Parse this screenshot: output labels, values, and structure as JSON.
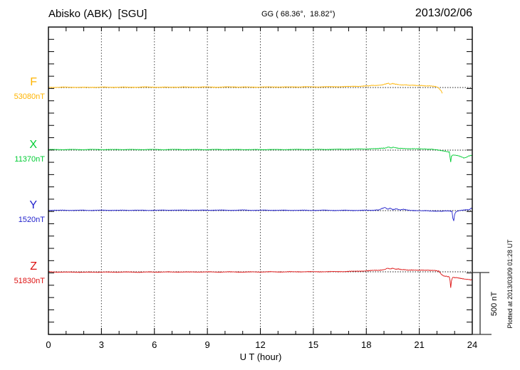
{
  "header": {
    "title": "Abisko (ABK)  [SGU]",
    "coords": "GG ( 68.36°,  18.82°)",
    "date": "2013/02/06"
  },
  "chart_data": {
    "type": "line",
    "title": "Abisko (ABK)  [SGU]",
    "coordinates_label": "GG ( 68.36°,  18.82°)",
    "date": "2013/02/06",
    "xlabel": "U T (hour)",
    "x_range": [
      0,
      24
    ],
    "x_ticks": [
      0,
      3,
      6,
      9,
      12,
      15,
      18,
      21,
      24
    ],
    "x_minor_step": 1,
    "y_minor_tick_nT": 100,
    "grid": "dotted vertical at 3h intervals, dotted horizontal baselines",
    "legend_position": "left margin, one label per trace",
    "scale_bar": {
      "label": "500 nT",
      "nT": 500
    },
    "plotted_at": "Plotted at 2013/03/09 01:28 UT",
    "series": [
      {
        "name": "F",
        "baseline_label": "53080nT",
        "baseline_nT": 53080,
        "color": "#FFB400",
        "points": [
          [
            0,
            2
          ],
          [
            0.5,
            1
          ],
          [
            1,
            3
          ],
          [
            1.5,
            2
          ],
          [
            2,
            1
          ],
          [
            2.5,
            2
          ],
          [
            3,
            3
          ],
          [
            3.5,
            2
          ],
          [
            4,
            3
          ],
          [
            4.5,
            2
          ],
          [
            5,
            3
          ],
          [
            5.5,
            4
          ],
          [
            6,
            3
          ],
          [
            6.5,
            2
          ],
          [
            7,
            3
          ],
          [
            7.5,
            4
          ],
          [
            8,
            3
          ],
          [
            8.5,
            4
          ],
          [
            9,
            4
          ],
          [
            9.5,
            3
          ],
          [
            10,
            4
          ],
          [
            10.5,
            5
          ],
          [
            11,
            4
          ],
          [
            11.5,
            3
          ],
          [
            12,
            4
          ],
          [
            12.5,
            4
          ],
          [
            13,
            5
          ],
          [
            13.5,
            4
          ],
          [
            14,
            5
          ],
          [
            14.5,
            6
          ],
          [
            15,
            5
          ],
          [
            15.5,
            6
          ],
          [
            16,
            6
          ],
          [
            16.5,
            7
          ],
          [
            17,
            8
          ],
          [
            17.5,
            10
          ],
          [
            18,
            13
          ],
          [
            18.3,
            16
          ],
          [
            18.6,
            18
          ],
          [
            18.9,
            22
          ],
          [
            19.1,
            28
          ],
          [
            19.25,
            34
          ],
          [
            19.35,
            26
          ],
          [
            19.5,
            31
          ],
          [
            19.65,
            27
          ],
          [
            19.8,
            25
          ],
          [
            20,
            22
          ],
          [
            20.3,
            20
          ],
          [
            20.6,
            18
          ],
          [
            21,
            16
          ],
          [
            21.3,
            14
          ],
          [
            21.6,
            12
          ],
          [
            21.9,
            8
          ],
          [
            22.05,
            2
          ],
          [
            22.15,
            -12
          ],
          [
            22.25,
            -30
          ],
          [
            22.3,
            -44
          ]
        ]
      },
      {
        "name": "X",
        "baseline_label": "11370nT",
        "baseline_nT": 11370,
        "color": "#00CC33",
        "points": [
          [
            0,
            4
          ],
          [
            0.5,
            5
          ],
          [
            1,
            4
          ],
          [
            1.5,
            5
          ],
          [
            2,
            4
          ],
          [
            2.5,
            5
          ],
          [
            3,
            5
          ],
          [
            3.5,
            4
          ],
          [
            4,
            5
          ],
          [
            4.5,
            5
          ],
          [
            5,
            4
          ],
          [
            5.5,
            5
          ],
          [
            6,
            5
          ],
          [
            6.5,
            4
          ],
          [
            7,
            5
          ],
          [
            7.5,
            5
          ],
          [
            8,
            4
          ],
          [
            8.5,
            5
          ],
          [
            9,
            4
          ],
          [
            9.5,
            5
          ],
          [
            10,
            5
          ],
          [
            10.5,
            4
          ],
          [
            11,
            5
          ],
          [
            11.5,
            4
          ],
          [
            12,
            4
          ],
          [
            12.5,
            5
          ],
          [
            13,
            4
          ],
          [
            13.5,
            5
          ],
          [
            14,
            5
          ],
          [
            14.5,
            6
          ],
          [
            15,
            5
          ],
          [
            15.5,
            6
          ],
          [
            16,
            6
          ],
          [
            16.5,
            7
          ],
          [
            17,
            8
          ],
          [
            17.5,
            9
          ],
          [
            18,
            10
          ],
          [
            18.4,
            12
          ],
          [
            18.8,
            14
          ],
          [
            19.1,
            18
          ],
          [
            19.25,
            27
          ],
          [
            19.4,
            18
          ],
          [
            19.55,
            23
          ],
          [
            19.7,
            17
          ],
          [
            20,
            14
          ],
          [
            20.4,
            12
          ],
          [
            20.8,
            10
          ],
          [
            21.2,
            9
          ],
          [
            21.5,
            8
          ],
          [
            21.8,
            6
          ],
          [
            22,
            2
          ],
          [
            22.2,
            -4
          ],
          [
            22.4,
            -8
          ],
          [
            22.6,
            -12
          ],
          [
            22.7,
            -14
          ],
          [
            22.74,
            -55
          ],
          [
            22.78,
            -97
          ],
          [
            22.82,
            -50
          ],
          [
            22.9,
            -40
          ],
          [
            23,
            -40
          ],
          [
            23.2,
            -46
          ],
          [
            23.4,
            -56
          ],
          [
            23.55,
            -63
          ],
          [
            23.7,
            -55
          ],
          [
            23.85,
            -44
          ],
          [
            24,
            -40
          ]
        ]
      },
      {
        "name": "Y",
        "baseline_label": "1520nT",
        "baseline_nT": 1520,
        "color": "#2222CC",
        "points": [
          [
            0,
            3
          ],
          [
            0.5,
            2
          ],
          [
            1,
            3
          ],
          [
            1.5,
            2
          ],
          [
            2,
            3
          ],
          [
            2.5,
            2
          ],
          [
            3,
            3
          ],
          [
            3.5,
            3
          ],
          [
            4,
            2
          ],
          [
            4.5,
            3
          ],
          [
            5,
            3
          ],
          [
            5.5,
            2
          ],
          [
            6,
            3
          ],
          [
            6.5,
            3
          ],
          [
            7,
            4
          ],
          [
            7.5,
            3
          ],
          [
            8,
            4
          ],
          [
            8.5,
            3
          ],
          [
            9,
            3
          ],
          [
            9.5,
            4
          ],
          [
            10,
            3
          ],
          [
            10.5,
            3
          ],
          [
            11,
            4
          ],
          [
            11.5,
            3
          ],
          [
            12,
            3
          ],
          [
            12.5,
            3
          ],
          [
            13,
            3
          ],
          [
            13.5,
            2
          ],
          [
            14,
            3
          ],
          [
            14.5,
            2
          ],
          [
            15,
            2
          ],
          [
            15.5,
            3
          ],
          [
            16,
            2
          ],
          [
            16.5,
            2
          ],
          [
            17,
            2
          ],
          [
            17.5,
            2
          ],
          [
            18,
            2
          ],
          [
            18.4,
            3
          ],
          [
            18.7,
            5
          ],
          [
            18.9,
            18
          ],
          [
            19.05,
            25
          ],
          [
            19.2,
            10
          ],
          [
            19.35,
            20
          ],
          [
            19.5,
            8
          ],
          [
            19.7,
            16
          ],
          [
            19.9,
            6
          ],
          [
            20.1,
            10
          ],
          [
            20.3,
            4
          ],
          [
            20.6,
            2
          ],
          [
            21,
            0
          ],
          [
            21.4,
            -2
          ],
          [
            21.8,
            -3
          ],
          [
            22.2,
            -4
          ],
          [
            22.5,
            -3
          ],
          [
            22.7,
            -4
          ],
          [
            22.85,
            -5
          ],
          [
            22.9,
            -60
          ],
          [
            22.95,
            -85
          ],
          [
            23,
            -30
          ],
          [
            23.1,
            -6
          ],
          [
            23.3,
            2
          ],
          [
            23.5,
            4
          ],
          [
            23.7,
            6
          ],
          [
            23.85,
            8
          ],
          [
            23.9,
            16
          ],
          [
            24,
            20
          ]
        ]
      },
      {
        "name": "Z",
        "baseline_label": "51830nT",
        "baseline_nT": 51830,
        "color": "#DD1111",
        "points": [
          [
            0,
            1
          ],
          [
            0.5,
            -2
          ],
          [
            1,
            -3
          ],
          [
            1.5,
            -2
          ],
          [
            2,
            -4
          ],
          [
            2.5,
            -3
          ],
          [
            3,
            -2
          ],
          [
            3.5,
            -3
          ],
          [
            4,
            -2
          ],
          [
            4.5,
            -2
          ],
          [
            5,
            -3
          ],
          [
            5.5,
            -2
          ],
          [
            6,
            -2
          ],
          [
            6.5,
            -1
          ],
          [
            7,
            -2
          ],
          [
            7.5,
            -1
          ],
          [
            8,
            -2
          ],
          [
            8.5,
            -1
          ],
          [
            9,
            -1
          ],
          [
            9.5,
            -2
          ],
          [
            10,
            -1
          ],
          [
            10.5,
            -1
          ],
          [
            11,
            -2
          ],
          [
            11.5,
            -1
          ],
          [
            12,
            -1
          ],
          [
            12.5,
            0
          ],
          [
            13,
            -1
          ],
          [
            13.5,
            0
          ],
          [
            14,
            0
          ],
          [
            14.5,
            1
          ],
          [
            15,
            0
          ],
          [
            15.5,
            1
          ],
          [
            16,
            1
          ],
          [
            16.5,
            2
          ],
          [
            17,
            3
          ],
          [
            17.5,
            5
          ],
          [
            18,
            8
          ],
          [
            18.4,
            11
          ],
          [
            18.8,
            14
          ],
          [
            19.05,
            20
          ],
          [
            19.2,
            30
          ],
          [
            19.35,
            22
          ],
          [
            19.5,
            28
          ],
          [
            19.65,
            20
          ],
          [
            19.8,
            24
          ],
          [
            20,
            18
          ],
          [
            20.3,
            15
          ],
          [
            20.6,
            13
          ],
          [
            21,
            12
          ],
          [
            21.3,
            14
          ],
          [
            21.6,
            11
          ],
          [
            21.9,
            10
          ],
          [
            22.1,
            6
          ],
          [
            22.25,
            -20
          ],
          [
            22.4,
            -34
          ],
          [
            22.6,
            -38
          ],
          [
            22.7,
            -40
          ],
          [
            22.74,
            -70
          ],
          [
            22.78,
            -128
          ],
          [
            22.82,
            -72
          ],
          [
            22.9,
            -44
          ],
          [
            23.1,
            -48
          ],
          [
            23.3,
            -52
          ],
          [
            23.5,
            -56
          ],
          [
            23.7,
            -60
          ],
          [
            23.85,
            -64
          ],
          [
            24,
            -66
          ]
        ]
      }
    ]
  }
}
